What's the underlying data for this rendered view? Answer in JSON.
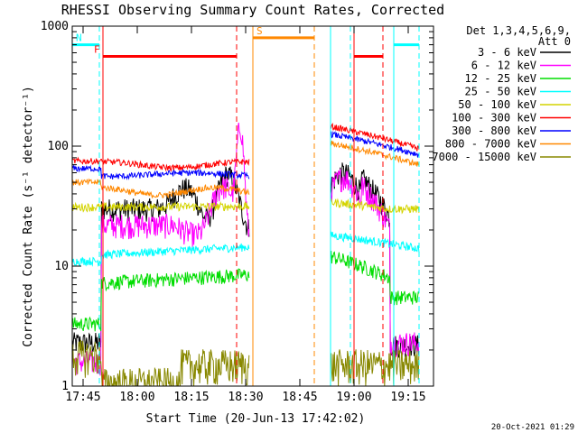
{
  "chart_data": {
    "type": "line",
    "title": "RHESSI Observing Summary Count Rates, Corrected",
    "xlabel": "Start Time (20-Jun-13 17:42:02)",
    "ylabel": "Corrected Count Rate (s⁻¹ detector⁻¹)",
    "x_unit": "minutes after 17:42:02",
    "xlim": [
      0,
      100
    ],
    "ylim": [
      1,
      1000
    ],
    "yscale": "log",
    "grid": false,
    "legend_position": "right",
    "legend_header": [
      "Det 1,3,4,5,6,9,",
      "Att 0"
    ],
    "footer_date": "20-Oct-2021 01:29",
    "x_ticks": [
      {
        "label": "17:45",
        "t": 3
      },
      {
        "label": "18:00",
        "t": 18
      },
      {
        "label": "18:15",
        "t": 33
      },
      {
        "label": "18:30",
        "t": 48
      },
      {
        "label": "18:45",
        "t": 63
      },
      {
        "label": "19:00",
        "t": 78
      },
      {
        "label": "19:15",
        "t": 93
      }
    ],
    "y_ticks": [
      {
        "label": "1",
        "v": 1
      },
      {
        "label": "10",
        "v": 10
      },
      {
        "label": "100",
        "v": 100
      },
      {
        "label": "1000",
        "v": 1000
      }
    ],
    "series": [
      {
        "name": "3 - 6 keV",
        "color": "#000000"
      },
      {
        "name": "6 - 12 keV",
        "color": "#ff00ff"
      },
      {
        "name": "12 - 25 keV",
        "color": "#00dd00"
      },
      {
        "name": "25 - 50 keV",
        "color": "#00ffff"
      },
      {
        "name": "50 - 100 keV",
        "color": "#d4d400"
      },
      {
        "name": "100 - 300 keV",
        "color": "#ff0000"
      },
      {
        "name": "300 - 800 keV",
        "color": "#0000ff"
      },
      {
        "name": "800 - 7000 keV",
        "color": "#ff8800"
      },
      {
        "name": "7000 - 15000 keV",
        "color": "#888800"
      }
    ],
    "annotations": [
      {
        "label": "N",
        "color": "#00ffff",
        "t_start": 0,
        "t_end": 7.5,
        "level": 700
      },
      {
        "label": "",
        "color": "#00ffff",
        "t_start": 71.5,
        "t_end": 77
      },
      {
        "label": "",
        "color": "#00ffff",
        "t_start": 89,
        "t_end": 96,
        "level": 700
      },
      {
        "label": "F",
        "color": "#ff0000",
        "t_start": 8.5,
        "t_end": 45.5,
        "level": 560
      },
      {
        "label": "",
        "color": "#ff0000",
        "t_start": 78,
        "t_end": 86,
        "level": 560
      },
      {
        "label": "S",
        "color": "#ff8800",
        "t_start": 50,
        "t_end": 67,
        "level": 800
      }
    ]
  }
}
